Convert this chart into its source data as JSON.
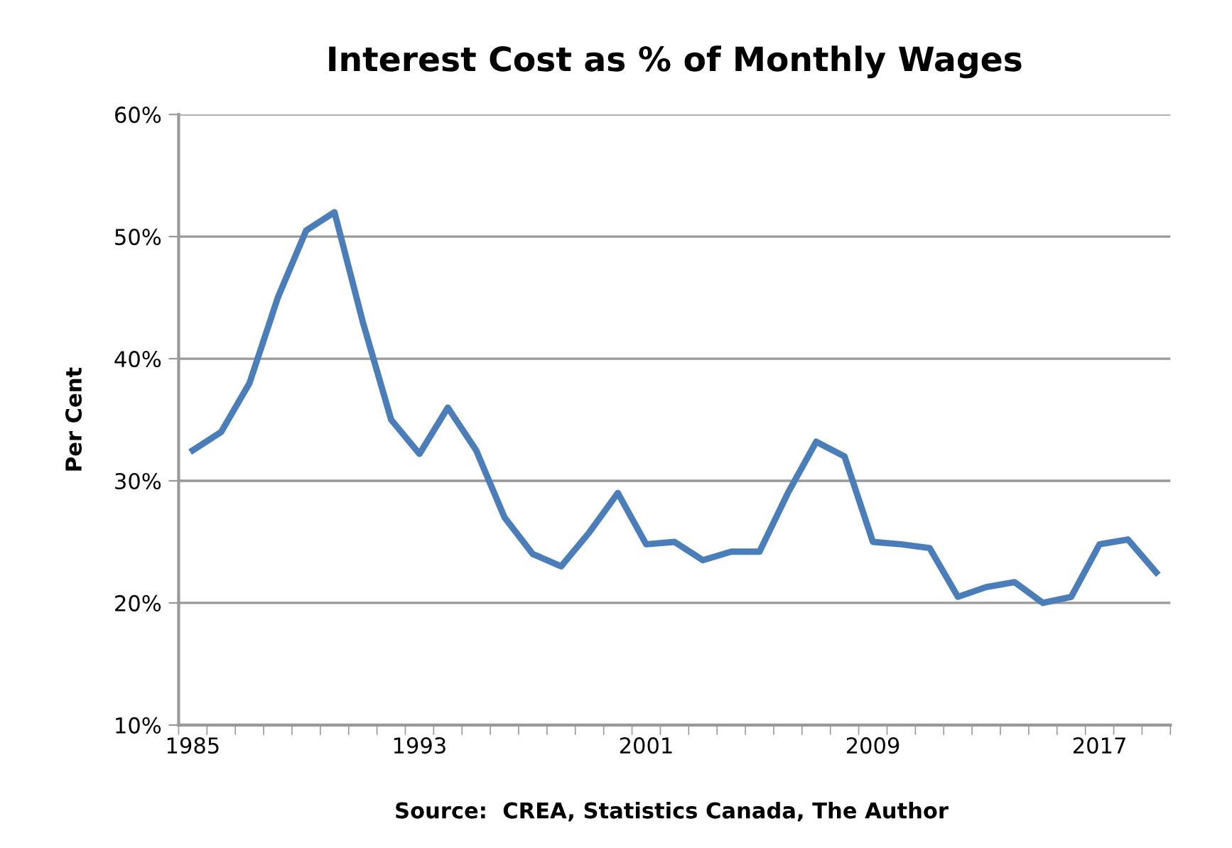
{
  "chart_data": {
    "type": "line",
    "title": "Interest Cost as % of Monthly Wages",
    "ylabel": "Per Cent",
    "annotations": [
      "Source:  CREA, Statistics Canada, The Author"
    ],
    "categories": [
      "1985",
      null,
      null,
      null,
      null,
      null,
      null,
      null,
      "1993",
      null,
      null,
      null,
      null,
      null,
      null,
      null,
      "2001",
      null,
      null,
      null,
      null,
      null,
      null,
      null,
      "2009",
      null,
      null,
      null,
      null,
      null,
      null,
      null,
      "2017",
      null,
      null
    ],
    "series": [
      {
        "color": "#4a7ebb",
        "values": [
          32.5,
          34,
          38,
          45,
          50.5,
          52,
          43,
          35,
          32.2,
          36,
          32.5,
          27,
          24,
          23,
          25.8,
          29,
          24.8,
          25,
          23.5,
          24.2,
          24.2,
          29,
          33.2,
          32,
          25,
          24.8,
          24.5,
          20.5,
          21.3,
          21.7,
          20,
          20.5,
          24.8,
          25.2,
          22.5
        ]
      }
    ],
    "ylim": [
      10,
      60
    ],
    "yticks": [
      {
        "value": 10,
        "label": "10%"
      },
      {
        "value": 20,
        "label": "20%"
      },
      {
        "value": 30,
        "label": "30%"
      },
      {
        "value": 40,
        "label": "40%"
      },
      {
        "value": 50,
        "label": "50%"
      },
      {
        "value": 60,
        "label": "60%"
      }
    ],
    "grid": "y",
    "marker": "none",
    "line_style": "solid"
  }
}
